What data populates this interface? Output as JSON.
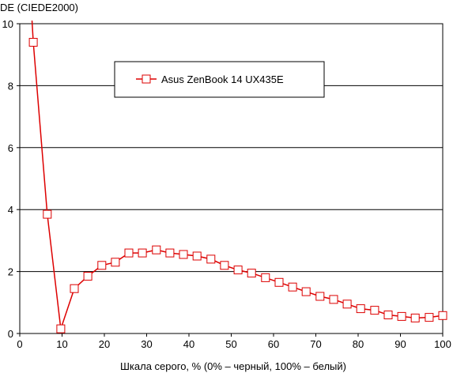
{
  "chart_data": {
    "type": "line",
    "title": "",
    "ylabel": "DE (CIEDE2000)",
    "xlabel": "Шкала серого, % (0% – черный, 100% – белый)",
    "xlim": [
      0,
      100
    ],
    "ylim": [
      0,
      10
    ],
    "xticks": [
      0,
      10,
      20,
      30,
      40,
      50,
      60,
      70,
      80,
      90,
      100
    ],
    "yticks": [
      0,
      2,
      4,
      6,
      8,
      10
    ],
    "grid": "horizontal",
    "legend_position": "top-center",
    "series": [
      {
        "name": "Asus ZenBook 14 UX435E",
        "color": "#dd0000",
        "marker": "open-square",
        "x": [
          3.2,
          6.5,
          9.7,
          12.9,
          16.1,
          19.4,
          22.6,
          25.8,
          29.0,
          32.3,
          35.5,
          38.7,
          41.9,
          45.2,
          48.4,
          51.6,
          54.8,
          58.1,
          61.3,
          64.5,
          67.7,
          71.0,
          74.2,
          77.4,
          80.6,
          83.9,
          87.1,
          90.3,
          93.5,
          96.8,
          100.0
        ],
        "y": [
          9.4,
          3.85,
          0.15,
          1.45,
          1.85,
          2.2,
          2.3,
          2.6,
          2.6,
          2.7,
          2.6,
          2.55,
          2.5,
          2.4,
          2.2,
          2.05,
          1.95,
          1.8,
          1.65,
          1.5,
          1.35,
          1.2,
          1.1,
          0.95,
          0.8,
          0.75,
          0.6,
          0.55,
          0.5,
          0.52,
          0.58
        ],
        "line_start": [
          2.9,
          10.2
        ]
      }
    ]
  }
}
